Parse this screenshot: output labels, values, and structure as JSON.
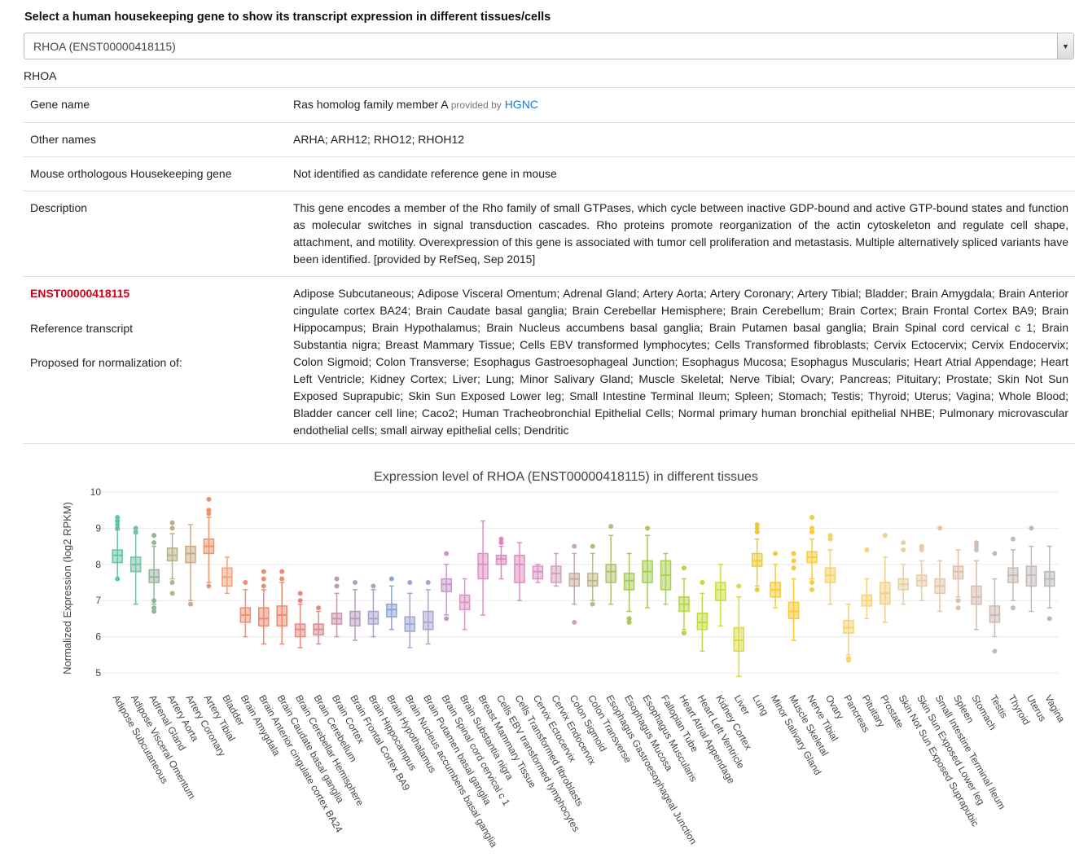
{
  "prompt": "Select a human housekeeping gene to show its transcript expression in different tissues/cells",
  "select": {
    "value": "RHOA (ENST00000418115)"
  },
  "gene_symbol": "RHOA",
  "info": {
    "gene_name_label": "Gene name",
    "gene_name": "Ras homolog family member A",
    "provided_by": "provided by",
    "provider": "HGNC",
    "other_names_label": "Other names",
    "other_names": "ARHA; ARH12; RHO12; RHOH12",
    "mouse_label": "Mouse orthologous Housekeeping gene",
    "mouse_value": "Not identified as candidate reference gene in mouse",
    "description_label": "Description",
    "description": "This gene encodes a member of the Rho family of small GTPases, which cycle between inactive GDP-bound and active GTP-bound states and function as molecular switches in signal transduction cascades. Rho proteins promote reorganization of the actin cytoskeleton and regulate cell shape, attachment, and motility. Overexpression of this gene is associated with tumor cell proliferation and metastasis. Multiple alternatively spliced variants have been identified. [provided by RefSeq, Sep 2015]",
    "transcript_id": "ENST00000418115",
    "reference_label": "Reference transcript",
    "proposed_label": "Proposed for normalization of:",
    "proposed_list": "Adipose Subcutaneous; Adipose Visceral Omentum; Adrenal Gland; Artery Aorta; Artery Coronary; Artery Tibial; Bladder; Brain Amygdala; Brain Anterior cingulate cortex BA24; Brain Caudate basal ganglia; Brain Cerebellar Hemisphere; Brain Cerebellum; Brain Cortex; Brain Frontal Cortex BA9; Brain Hippocampus; Brain Hypothalamus; Brain Nucleus accumbens basal ganglia; Brain Putamen basal ganglia; Brain Spinal cord cervical c 1; Brain Substantia nigra; Breast Mammary Tissue; Cells EBV transformed lymphocytes; Cells Transformed fibroblasts; Cervix Ectocervix; Cervix Endocervix; Colon Sigmoid; Colon Transverse; Esophagus Gastroesophageal Junction; Esophagus Mucosa; Esophagus Muscularis; Heart Atrial Appendage; Heart Left Ventricle; Kidney Cortex; Liver; Lung; Minor Salivary Gland; Muscle Skeletal; Nerve Tibial; Ovary; Pancreas; Pituitary; Prostate; Skin Not Sun Exposed Suprapubic; Skin Sun Exposed Lower leg; Small Intestine Terminal Ileum; Spleen; Stomach; Testis; Thyroid; Uterus; Vagina; Whole Blood; Bladder cancer cell line; Caco2; Human Tracheobronchial Epithelial Cells; Normal primary human bronchial epithelial NHBE; Pulmonary microvascular endothelial cells; small airway epithelial cells; Dendritic"
  },
  "chart_data": {
    "type": "box",
    "title": "Expression level of  RHOA (ENST00000418115) in different tissues",
    "ylabel": "Normalized Expression (log2 RPKM)",
    "ylim": [
      4.6,
      10.1
    ],
    "yticks": [
      5,
      6,
      7,
      8,
      9,
      10
    ],
    "grid": true,
    "legend": "none",
    "categories": [
      "Adipose Subcutaneous",
      "Adipose Visceral Omentum",
      "Adrenal Gland",
      "Artery Aorta",
      "Artery Coronary",
      "Artery Tibial",
      "Bladder",
      "Brain Amygdala",
      "Brain Anterior cingulate cortex BA24",
      "Brain Caudate basal ganglia",
      "Brain Cerebellar Hemisphere",
      "Brain Cerebellum",
      "Brain Cortex",
      "Brain Frontal Cortex BA9",
      "Brain Hippocampus",
      "Brain Hypothalamus",
      "Brain Nucleus accumbens basal ganglia",
      "Brain Putamen basal ganglia",
      "Brain Spinal cord cervical c 1",
      "Brain Substantia nigra",
      "Breast Mammary Tissue",
      "Cells EBV transformed lymphocytes",
      "Cells Transformed fibroblasts",
      "Cervix Ectocervix",
      "Cervix Endocervix",
      "Colon Sigmoid",
      "Colon Transverse",
      "Esophagus Gastroesophageal Junction",
      "Esophagus Mucosa",
      "Esophagus Muscularis",
      "Fallopian Tube",
      "Heart Atrial Appendage",
      "Heart Left Ventricle",
      "Kidney Cortex",
      "Liver",
      "Lung",
      "Minor Salivary Gland",
      "Muscle Skeletal",
      "Nerve Tibial",
      "Ovary",
      "Pancreas",
      "Pituitary",
      "Prostate",
      "Skin Not Sun Exposed Suprapubic",
      "Skin Sun Exposed Lower leg",
      "Small Intestine Terminal Ileum",
      "Spleen",
      "Stomach",
      "Testis",
      "Thyroid",
      "Uterus",
      "Vagina"
    ],
    "boxes": [
      {
        "min": 7.6,
        "q1": 8.05,
        "median": 8.25,
        "q3": 8.4,
        "max": 8.95,
        "outliers": [
          9.3,
          9.2,
          9.1,
          9.0,
          7.6
        ]
      },
      {
        "min": 6.9,
        "q1": 7.8,
        "median": 8.0,
        "q3": 8.2,
        "max": 8.85,
        "outliers": [
          9.0,
          8.9
        ]
      },
      {
        "min": 6.9,
        "q1": 7.5,
        "median": 7.65,
        "q3": 7.85,
        "max": 8.5,
        "outliers": [
          8.8,
          8.6,
          7.0,
          6.8,
          6.7
        ]
      },
      {
        "min": 7.6,
        "q1": 8.1,
        "median": 8.25,
        "q3": 8.45,
        "max": 8.85,
        "outliers": [
          9.15,
          9.0,
          7.5,
          7.2
        ]
      },
      {
        "min": 7.0,
        "q1": 8.05,
        "median": 8.3,
        "q3": 8.5,
        "max": 9.1,
        "outliers": [
          6.9
        ]
      },
      {
        "min": 7.5,
        "q1": 8.3,
        "median": 8.5,
        "q3": 8.7,
        "max": 9.3,
        "outliers": [
          9.8,
          9.5,
          9.4,
          7.4
        ]
      },
      {
        "min": 7.2,
        "q1": 7.4,
        "median": 7.65,
        "q3": 7.9,
        "max": 8.2,
        "outliers": []
      },
      {
        "min": 6.0,
        "q1": 6.4,
        "median": 6.6,
        "q3": 6.8,
        "max": 7.3,
        "outliers": [
          7.5
        ]
      },
      {
        "min": 5.8,
        "q1": 6.3,
        "median": 6.5,
        "q3": 6.8,
        "max": 7.3,
        "outliers": [
          7.8,
          7.6,
          7.4
        ]
      },
      {
        "min": 5.8,
        "q1": 6.3,
        "median": 6.6,
        "q3": 6.85,
        "max": 7.5,
        "outliers": [
          7.8,
          7.6
        ]
      },
      {
        "min": 5.7,
        "q1": 6.0,
        "median": 6.2,
        "q3": 6.35,
        "max": 6.9,
        "outliers": [
          7.2,
          7.0
        ]
      },
      {
        "min": 5.8,
        "q1": 6.05,
        "median": 6.2,
        "q3": 6.35,
        "max": 6.7,
        "outliers": [
          6.8
        ]
      },
      {
        "min": 6.0,
        "q1": 6.35,
        "median": 6.5,
        "q3": 6.65,
        "max": 7.2,
        "outliers": [
          7.6,
          7.4
        ]
      },
      {
        "min": 5.9,
        "q1": 6.3,
        "median": 6.5,
        "q3": 6.7,
        "max": 7.3,
        "outliers": [
          7.5
        ]
      },
      {
        "min": 6.0,
        "q1": 6.35,
        "median": 6.5,
        "q3": 6.7,
        "max": 7.3,
        "outliers": [
          7.4
        ]
      },
      {
        "min": 6.2,
        "q1": 6.55,
        "median": 6.75,
        "q3": 6.9,
        "max": 7.4,
        "outliers": [
          7.6
        ]
      },
      {
        "min": 5.7,
        "q1": 6.15,
        "median": 6.35,
        "q3": 6.55,
        "max": 7.2,
        "outliers": [
          7.5
        ]
      },
      {
        "min": 5.8,
        "q1": 6.2,
        "median": 6.4,
        "q3": 6.7,
        "max": 7.3,
        "outliers": [
          7.5
        ]
      },
      {
        "min": 6.6,
        "q1": 7.25,
        "median": 7.45,
        "q3": 7.6,
        "max": 8.0,
        "outliers": [
          8.3,
          6.5
        ]
      },
      {
        "min": 6.2,
        "q1": 6.75,
        "median": 6.95,
        "q3": 7.15,
        "max": 7.6,
        "outliers": []
      },
      {
        "min": 6.6,
        "q1": 7.6,
        "median": 8.0,
        "q3": 8.3,
        "max": 9.2,
        "outliers": []
      },
      {
        "min": 7.6,
        "q1": 8.0,
        "median": 8.15,
        "q3": 8.25,
        "max": 8.5,
        "outliers": [
          8.7,
          8.6
        ]
      },
      {
        "min": 7.0,
        "q1": 7.5,
        "median": 8.0,
        "q3": 8.25,
        "max": 8.6,
        "outliers": []
      },
      {
        "min": 7.5,
        "q1": 7.6,
        "median": 7.8,
        "q3": 7.95,
        "max": 8.0,
        "outliers": []
      },
      {
        "min": 7.4,
        "q1": 7.5,
        "median": 7.75,
        "q3": 7.95,
        "max": 8.3,
        "outliers": []
      },
      {
        "min": 6.9,
        "q1": 7.4,
        "median": 7.6,
        "q3": 7.75,
        "max": 8.3,
        "outliers": [
          8.5,
          6.4
        ]
      },
      {
        "min": 7.0,
        "q1": 7.4,
        "median": 7.55,
        "q3": 7.75,
        "max": 8.3,
        "outliers": [
          8.5,
          6.9
        ]
      },
      {
        "min": 6.9,
        "q1": 7.5,
        "median": 7.8,
        "q3": 8.0,
        "max": 8.8,
        "outliers": [
          9.05
        ]
      },
      {
        "min": 6.7,
        "q1": 7.3,
        "median": 7.55,
        "q3": 7.75,
        "max": 8.3,
        "outliers": [
          6.5,
          6.4
        ]
      },
      {
        "min": 6.8,
        "q1": 7.5,
        "median": 7.8,
        "q3": 8.1,
        "max": 8.8,
        "outliers": [
          9.0
        ]
      },
      {
        "min": 6.9,
        "q1": 7.3,
        "median": 7.7,
        "q3": 8.1,
        "max": 8.3,
        "outliers": []
      },
      {
        "min": 6.2,
        "q1": 6.7,
        "median": 6.9,
        "q3": 7.1,
        "max": 7.6,
        "outliers": [
          7.9,
          6.1
        ]
      },
      {
        "min": 5.6,
        "q1": 6.2,
        "median": 6.4,
        "q3": 6.65,
        "max": 7.2,
        "outliers": [
          7.5
        ]
      },
      {
        "min": 6.3,
        "q1": 7.0,
        "median": 7.3,
        "q3": 7.5,
        "max": 8.0,
        "outliers": []
      },
      {
        "min": 4.9,
        "q1": 5.6,
        "median": 5.9,
        "q3": 6.25,
        "max": 7.1,
        "outliers": [
          7.4
        ]
      },
      {
        "min": 7.4,
        "q1": 7.95,
        "median": 8.1,
        "q3": 8.3,
        "max": 8.7,
        "outliers": [
          9.1,
          9.0,
          8.9,
          7.3
        ]
      },
      {
        "min": 6.8,
        "q1": 7.1,
        "median": 7.3,
        "q3": 7.5,
        "max": 8.0,
        "outliers": [
          8.3
        ]
      },
      {
        "min": 5.9,
        "q1": 6.5,
        "median": 6.7,
        "q3": 6.95,
        "max": 7.6,
        "outliers": [
          8.3,
          8.1,
          7.9
        ]
      },
      {
        "min": 7.6,
        "q1": 8.05,
        "median": 8.2,
        "q3": 8.35,
        "max": 8.7,
        "outliers": [
          9.3,
          9.0,
          8.9,
          7.5,
          7.3
        ]
      },
      {
        "min": 6.9,
        "q1": 7.5,
        "median": 7.7,
        "q3": 7.9,
        "max": 8.4,
        "outliers": [
          8.8,
          8.7
        ]
      },
      {
        "min": 5.5,
        "q1": 6.1,
        "median": 6.25,
        "q3": 6.45,
        "max": 6.9,
        "outliers": [
          5.4,
          5.35
        ]
      },
      {
        "min": 6.5,
        "q1": 6.85,
        "median": 7.0,
        "q3": 7.15,
        "max": 7.6,
        "outliers": [
          8.4
        ]
      },
      {
        "min": 6.4,
        "q1": 6.9,
        "median": 7.2,
        "q3": 7.5,
        "max": 8.2,
        "outliers": [
          8.8
        ]
      },
      {
        "min": 6.9,
        "q1": 7.3,
        "median": 7.45,
        "q3": 7.6,
        "max": 8.0,
        "outliers": [
          8.6,
          8.4
        ]
      },
      {
        "min": 7.0,
        "q1": 7.4,
        "median": 7.55,
        "q3": 7.7,
        "max": 8.1,
        "outliers": [
          8.5,
          8.4
        ]
      },
      {
        "min": 6.7,
        "q1": 7.2,
        "median": 7.4,
        "q3": 7.6,
        "max": 8.1,
        "outliers": [
          9.0
        ]
      },
      {
        "min": 7.1,
        "q1": 7.6,
        "median": 7.8,
        "q3": 7.95,
        "max": 8.4,
        "outliers": [
          7.0,
          6.8
        ]
      },
      {
        "min": 6.2,
        "q1": 6.9,
        "median": 7.1,
        "q3": 7.4,
        "max": 8.1,
        "outliers": [
          8.6,
          8.5,
          8.4
        ]
      },
      {
        "min": 6.0,
        "q1": 6.4,
        "median": 6.6,
        "q3": 6.85,
        "max": 7.6,
        "outliers": [
          8.3,
          5.6
        ]
      },
      {
        "min": 7.0,
        "q1": 7.5,
        "median": 7.7,
        "q3": 7.9,
        "max": 8.4,
        "outliers": [
          8.7,
          6.8
        ]
      },
      {
        "min": 6.7,
        "q1": 7.4,
        "median": 7.7,
        "q3": 7.95,
        "max": 8.5,
        "outliers": [
          9.0
        ]
      },
      {
        "min": 6.8,
        "q1": 7.4,
        "median": 7.6,
        "q3": 7.8,
        "max": 8.5,
        "outliers": [
          6.5
        ]
      }
    ],
    "colors": [
      "#66c2a5",
      "#76c0a6",
      "#93b69a",
      "#b8b088",
      "#c8ab85",
      "#e5986e",
      "#f1a27c",
      "#f3906d",
      "#f08a6c",
      "#ec8b70",
      "#e28b80",
      "#d98e90",
      "#c995ad",
      "#b79cbf",
      "#a7a3cb",
      "#8ea5d0",
      "#9ea5cf",
      "#b0a2cf",
      "#c69ac9",
      "#d997c5",
      "#e08ec3",
      "#df87c1",
      "#e18bc2",
      "#d896c2",
      "#d1a0bf",
      "#c8ab9a",
      "#c1b584",
      "#b2bf72",
      "#a8c75e",
      "#a3ce52",
      "#a8d24a",
      "#b4d646",
      "#c2d943",
      "#cedb3f",
      "#dbdb38",
      "#eccd2e",
      "#f1cb3f",
      "#f7ca36",
      "#fbcb3a",
      "#fad35a",
      "#f7d36f",
      "#f4d37e",
      "#efd08c",
      "#ead09e",
      "#e8cca8",
      "#e2c6aa",
      "#ddc0ab",
      "#d6bcae",
      "#cfb8af",
      "#c9b9b1",
      "#c2bab7",
      "#b9b9b9"
    ]
  }
}
